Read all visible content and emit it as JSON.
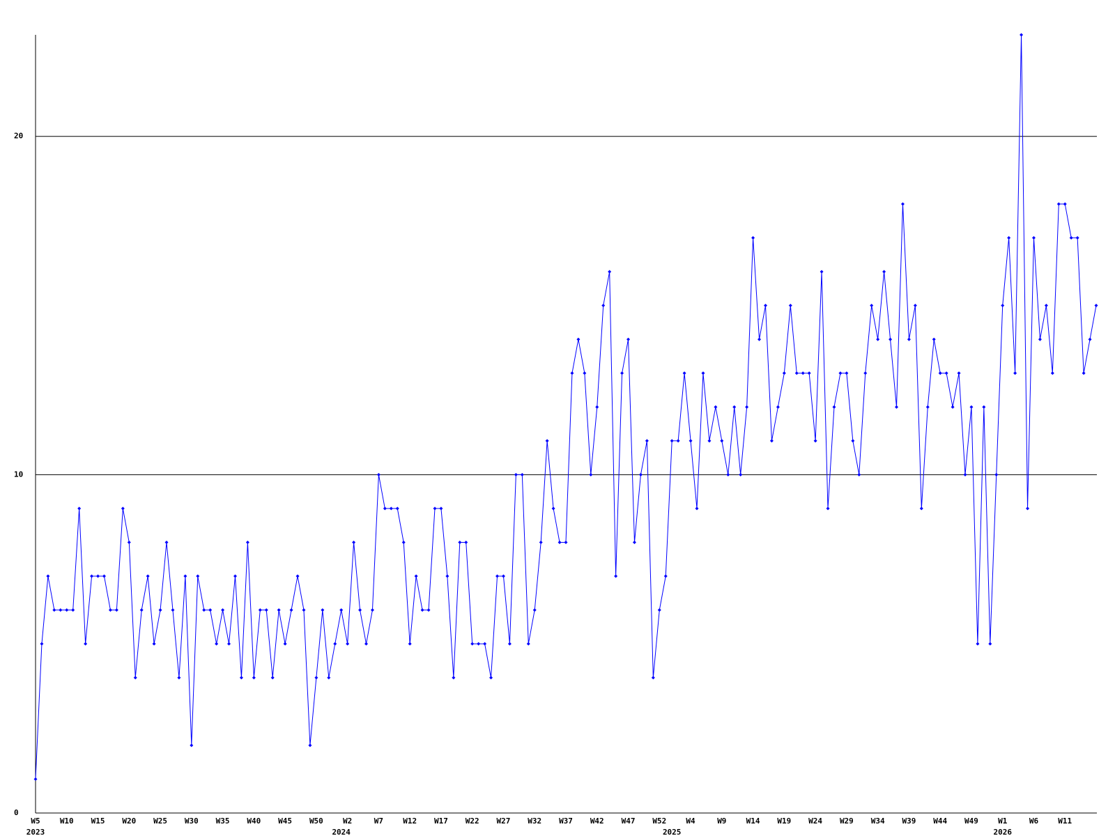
{
  "chart_data": {
    "type": "line",
    "categories": [
      "W5",
      null,
      null,
      null,
      null,
      "W10",
      null,
      null,
      null,
      null,
      "W15",
      null,
      null,
      null,
      null,
      "W20",
      null,
      null,
      null,
      null,
      "W25",
      null,
      null,
      null,
      null,
      "W30",
      null,
      null,
      null,
      null,
      "W35",
      null,
      null,
      null,
      null,
      "W40",
      null,
      null,
      null,
      null,
      "W45",
      null,
      null,
      null,
      null,
      "W50",
      null,
      null,
      null,
      null,
      "W2",
      null,
      null,
      null,
      null,
      "W7",
      null,
      null,
      null,
      null,
      "W12",
      null,
      null,
      null,
      null,
      "W17",
      null,
      null,
      null,
      null,
      "W22",
      null,
      null,
      null,
      null,
      "W27",
      null,
      null,
      null,
      null,
      "W32",
      null,
      null,
      null,
      null,
      "W37",
      null,
      null,
      null,
      null,
      "W42",
      null,
      null,
      null,
      null,
      "W47",
      null,
      null,
      null,
      null,
      "W52",
      null,
      null,
      null,
      null,
      "W4",
      null,
      null,
      null,
      null,
      "W9",
      null,
      null,
      null,
      null,
      "W14",
      null,
      null,
      null,
      null,
      "W19",
      null,
      null,
      null,
      null,
      "W24",
      null,
      null,
      null,
      null,
      "W29",
      null,
      null,
      null,
      null,
      "W34",
      null,
      null,
      null,
      null,
      "W39",
      null,
      null,
      null,
      null,
      "W44",
      null,
      null,
      null,
      null,
      "W49",
      null,
      null,
      null,
      null,
      "W1",
      null,
      null,
      null,
      null,
      "W6",
      null,
      null,
      null,
      null,
      "W11",
      null,
      null,
      null,
      null,
      null
    ],
    "years": [
      "2023",
      null,
      null,
      null,
      null,
      null,
      null,
      null,
      null,
      null,
      null,
      null,
      null,
      null,
      null,
      null,
      null,
      null,
      null,
      null,
      null,
      null,
      null,
      null,
      null,
      null,
      null,
      null,
      null,
      null,
      null,
      null,
      null,
      null,
      null,
      null,
      null,
      null,
      null,
      null,
      null,
      null,
      null,
      null,
      null,
      null,
      null,
      null,
      null,
      "2024",
      null,
      null,
      null,
      null,
      null,
      null,
      null,
      null,
      null,
      null,
      null,
      null,
      null,
      null,
      null,
      null,
      null,
      null,
      null,
      null,
      null,
      null,
      null,
      null,
      null,
      null,
      null,
      null,
      null,
      null,
      null,
      null,
      null,
      null,
      null,
      null,
      null,
      null,
      null,
      null,
      null,
      null,
      null,
      null,
      null,
      null,
      null,
      null,
      null,
      null,
      null,
      null,
      "2025",
      null,
      null,
      null,
      null,
      null,
      null,
      null,
      null,
      null,
      null,
      null,
      null,
      null,
      null,
      null,
      null,
      null,
      null,
      null,
      null,
      null,
      null,
      null,
      null,
      null,
      null,
      null,
      null,
      null,
      null,
      null,
      null,
      null,
      null,
      null,
      null,
      null,
      null,
      null,
      null,
      null,
      null,
      null,
      null,
      null,
      null,
      null,
      null,
      null,
      null,
      null,
      null,
      "2026",
      null,
      null,
      null,
      null,
      null,
      null,
      null,
      null,
      null,
      null,
      null,
      null,
      null,
      null,
      null
    ],
    "series": [
      {
        "color": "#0000ff",
        "values": [
          1,
          5,
          7,
          6,
          6,
          6,
          6,
          9,
          5,
          7,
          7,
          7,
          6,
          6,
          9,
          8,
          4,
          6,
          7,
          5,
          6,
          8,
          6,
          4,
          7,
          2,
          7,
          6,
          6,
          5,
          6,
          5,
          7,
          4,
          8,
          4,
          6,
          6,
          4,
          6,
          5,
          6,
          7,
          6,
          2,
          4,
          6,
          4,
          5,
          6,
          5,
          8,
          6,
          5,
          6,
          10,
          9,
          9,
          9,
          8,
          5,
          7,
          6,
          6,
          9,
          9,
          7,
          4,
          8,
          8,
          5,
          5,
          5,
          4,
          7,
          7,
          5,
          10,
          10,
          5,
          6,
          8,
          11,
          9,
          8,
          8,
          13,
          14,
          13,
          10,
          12,
          15,
          16,
          7,
          13,
          14,
          8,
          10,
          11,
          4,
          6,
          7,
          11,
          11,
          13,
          11,
          9,
          13,
          11,
          12,
          11,
          10,
          12,
          10,
          12,
          17,
          14,
          15,
          11,
          12,
          13,
          15,
          13,
          13,
          13,
          11,
          16,
          9,
          12,
          13,
          13,
          11,
          10,
          13,
          15,
          14,
          16,
          14,
          12,
          18,
          14,
          15,
          9,
          12,
          14,
          13,
          13,
          12,
          13,
          10,
          12,
          5,
          12,
          5,
          10,
          15,
          17,
          13,
          23,
          9,
          17,
          14,
          15,
          13,
          18,
          18,
          17,
          17,
          13,
          14,
          15
        ]
      }
    ],
    "ylim": [
      0,
      23
    ],
    "yticks": [
      0,
      10,
      20
    ],
    "grid": true,
    "grid_color": "#000000"
  }
}
